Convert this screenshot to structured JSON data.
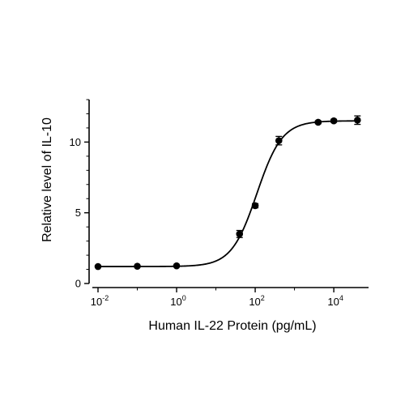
{
  "chart_data": {
    "type": "scatter",
    "title": "",
    "xlabel": "Human IL-22 Protein (pg/mL)",
    "ylabel": "Relative level of IL-10",
    "x_scale": "log",
    "xlim": [
      0.01,
      50000
    ],
    "ylim": [
      0,
      13
    ],
    "x_ticks": [
      0.01,
      1,
      100,
      10000
    ],
    "x_tick_labels": [
      {
        "base": "10",
        "exp": "-2"
      },
      {
        "base": "10",
        "exp": "0"
      },
      {
        "base": "10",
        "exp": "2"
      },
      {
        "base": "10",
        "exp": "4"
      }
    ],
    "y_ticks": [
      0,
      5,
      10
    ],
    "y_tick_labels": [
      "0",
      "5",
      "10"
    ],
    "grid": false,
    "legend": "none",
    "series": [
      {
        "x": [
          0.01,
          0.1,
          1,
          40,
          100,
          400,
          4000,
          10000,
          40000
        ],
        "y": [
          1.2,
          1.22,
          1.25,
          3.5,
          5.5,
          10.1,
          11.4,
          11.5,
          11.55
        ],
        "error": [
          0.05,
          0.05,
          0.05,
          0.25,
          0.15,
          0.3,
          0.1,
          0.1,
          0.3
        ]
      }
    ],
    "fit_curve": {
      "model": "4PL",
      "bottom": 1.2,
      "top": 11.5,
      "ec50": 110,
      "hill": 1.35
    },
    "colors": {
      "points": "#000000",
      "curve": "#000000",
      "axes": "#000000"
    }
  }
}
